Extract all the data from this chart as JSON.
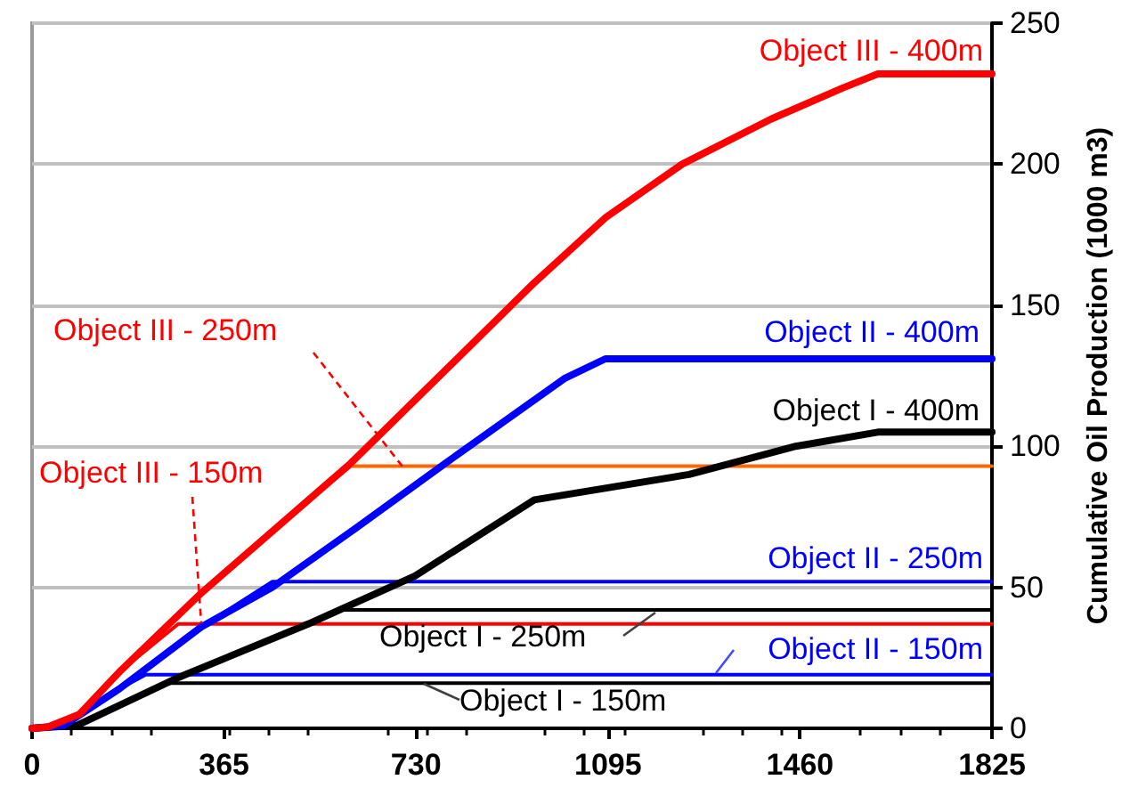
{
  "chart_data": {
    "type": "line",
    "ylabel": "Cumulative Oil Production (1000 m3)",
    "xlim": [
      0,
      1825
    ],
    "xticks": [
      0,
      365,
      730,
      1095,
      1460,
      1825
    ],
    "ylim": [
      0,
      250
    ],
    "yticks": [
      0,
      50,
      100,
      150,
      200,
      250
    ],
    "grid": "y",
    "legend": false,
    "marker": "none",
    "line_style": "solid",
    "series": [
      {
        "name": "Object III - 400m",
        "color": "#ff0000",
        "x": [
          0,
          30,
          90,
          166,
          322,
          606,
          955,
          1090,
          1236,
          1405,
          1541,
          1608,
          1825
        ],
        "values": [
          0,
          0.5,
          5,
          20,
          48,
          94,
          158,
          181,
          200,
          216,
          227,
          232,
          232
        ]
      },
      {
        "name": "Object II - 400m",
        "color": "#0000ff",
        "x": [
          0,
          60,
          166,
          322,
          457,
          616,
          786,
          1012,
          1090,
          1825
        ],
        "values": [
          0,
          1,
          14,
          36,
          50,
          71,
          94,
          124,
          131,
          131
        ]
      },
      {
        "name": "Object I - 400m",
        "color": "#000000",
        "x": [
          0,
          85,
          278,
          525,
          728,
          955,
          1249,
          1452,
          1608,
          1825
        ],
        "values": [
          0,
          1,
          18,
          37,
          54,
          81,
          90,
          100,
          105,
          105
        ]
      },
      {
        "name": "Object III - 250m",
        "color": "#ff6600",
        "x": [
          560,
          606,
          1825
        ],
        "values": [
          86,
          93,
          93
        ]
      },
      {
        "name": "Object III - 150m",
        "color": "#ff0000",
        "x": [
          0,
          30,
          90,
          166,
          278,
          1825
        ],
        "values": [
          0,
          0.5,
          5,
          20,
          37,
          37
        ]
      },
      {
        "name": "Object II - 250m",
        "color": "#0000ff",
        "x": [
          0,
          60,
          166,
          322,
          457,
          1825
        ],
        "values": [
          0,
          1,
          14,
          36,
          52,
          52
        ]
      },
      {
        "name": "Object I - 250m",
        "color": "#000000",
        "x": [
          0,
          85,
          278,
          525,
          590,
          1825
        ],
        "values": [
          0,
          1,
          18,
          37,
          42,
          42
        ]
      },
      {
        "name": "Object II - 150m",
        "color": "#0000ff",
        "x": [
          0,
          60,
          166,
          216,
          1825
        ],
        "values": [
          0,
          1,
          14,
          19,
          19
        ]
      },
      {
        "name": "Object I - 150m",
        "color": "#000000",
        "x": [
          0,
          85,
          250,
          1825
        ],
        "values": [
          0,
          1,
          16,
          16
        ]
      }
    ]
  }
}
